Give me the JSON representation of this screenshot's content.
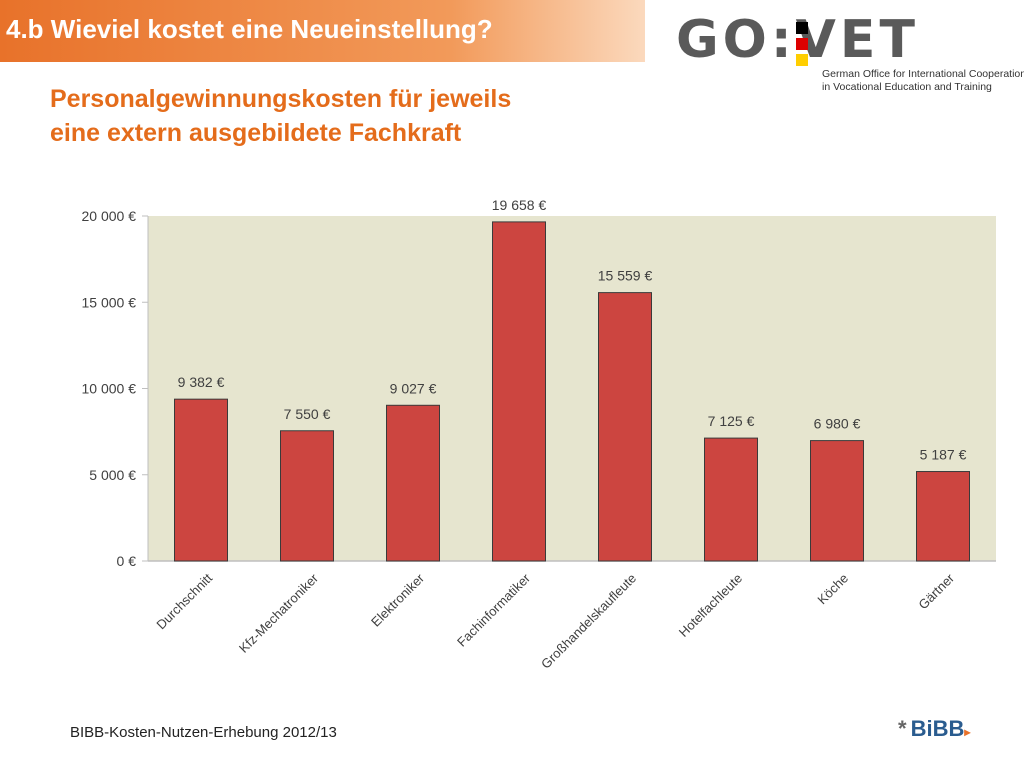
{
  "header": {
    "title": "4.b Wieviel kostet eine Neueinstellung?",
    "subtitle_line1": "Personalgewinnungskosten für jeweils",
    "subtitle_line2": "eine extern ausgebildete Fachkraft"
  },
  "logo": {
    "text": "GO:VET",
    "line1": "German Office for International Cooperation",
    "line2": "in Vocational Education and Training",
    "flag_colors": [
      "#000000",
      "#dd0000",
      "#ffce00"
    ]
  },
  "footer": {
    "source": "BIBB-Kosten-Nutzen-Erhebung 2012/13",
    "brand_star": "*",
    "brand": "BiBB"
  },
  "colors": {
    "bar": "#cc4540",
    "plot_bg": "#e6e5cf",
    "title_bar": "#e8722a",
    "subtitle": "#e46c1b"
  },
  "chart_data": {
    "type": "bar",
    "categories": [
      "Durchschnitt",
      "Kfz-Mechatroniker",
      "Elektroniker",
      "Fachinformatiker",
      "Großhandelskaufleute",
      "Hotelfachleute",
      "Köche",
      "Gärtner"
    ],
    "values": [
      9382,
      7550,
      9027,
      19658,
      15559,
      7125,
      6980,
      5187
    ],
    "data_labels": [
      "9 382 €",
      "7 550 €",
      "9 027 €",
      "19 658 €",
      "15 559 €",
      "7 125 €",
      "6 980 €",
      "5 187 €"
    ],
    "ylim": [
      0,
      20000
    ],
    "yticks": [
      0,
      5000,
      10000,
      15000,
      20000
    ],
    "ytick_labels": [
      "0 €",
      "5 000 €",
      "10 000 €",
      "15 000 €",
      "20 000 €"
    ],
    "grid": false,
    "legend": "none"
  }
}
